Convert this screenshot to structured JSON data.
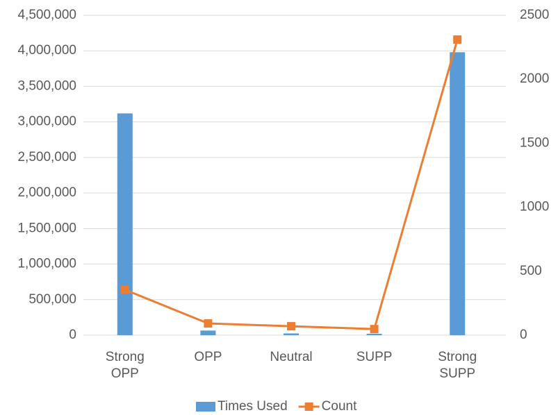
{
  "chart_data": {
    "type": "bar",
    "categories": [
      "Strong OPP",
      "OPP",
      "Neutral",
      "SUPP",
      "Strong SUPP"
    ],
    "series": [
      {
        "name": "Times Used",
        "type": "bar",
        "color": "#5b9bd5",
        "values": [
          3120000,
          65000,
          25000,
          20000,
          3980000
        ]
      },
      {
        "name": "Count",
        "type": "line",
        "axis": "y2",
        "color": "#ed7d31",
        "values": [
          355,
          92,
          70,
          48,
          2310
        ]
      }
    ],
    "ylim": [
      0,
      4500000
    ],
    "yticks": [
      0,
      {
        "value": 500000,
        "label": "500,000"
      },
      {
        "value": 1000000,
        "label": "1,000,000"
      },
      {
        "value": 1500000,
        "label": "1,500,000"
      },
      {
        "value": 2000000,
        "label": "2,000,000"
      },
      {
        "value": 2500000,
        "label": "2,500,000"
      },
      {
        "value": 3000000,
        "label": "3,000,000"
      },
      {
        "value": 3500000,
        "label": "3,500,000"
      },
      {
        "value": 4000000,
        "label": "4,000,000"
      },
      {
        "value": 4500000,
        "label": "4,500,000"
      }
    ],
    "y2lim": [
      0,
      2500
    ],
    "y2ticks": [
      0,
      500,
      1000,
      1500,
      2000,
      2500
    ],
    "grid": true,
    "legend": "bottom"
  }
}
